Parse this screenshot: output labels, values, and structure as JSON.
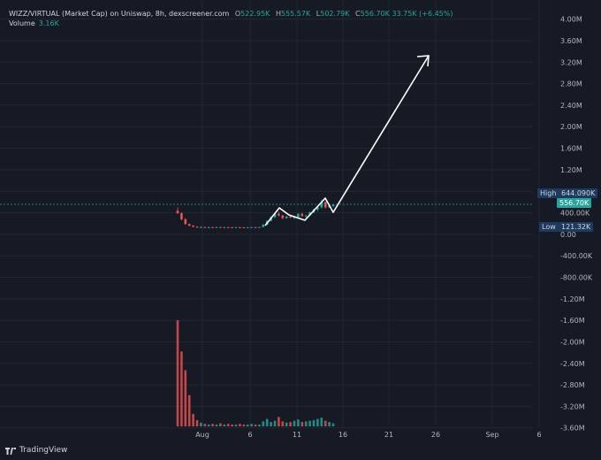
{
  "header": {
    "pair": "WIZZ/VIRTUAL (Market Cap) on Uniswap, 8h, dexscreener.com",
    "open_label": "O",
    "open_value": "522.95K",
    "high_label": "H",
    "high_value": "555.57K",
    "low_label": "L",
    "low_value": "502.79K",
    "close_label": "C",
    "close_value": "556.70K",
    "change": "33.75K (+6.45%)",
    "volume_label": "Volume",
    "volume_value": "3.16K"
  },
  "price_tags": {
    "high_label": "High",
    "high_value": "644.090K",
    "current_value": "556.70K",
    "low_label": "Low",
    "low_value": "121.32K"
  },
  "footer": {
    "brand": "TradingView"
  },
  "colors": {
    "background": "#161a25",
    "grid": "#232733",
    "up": "#26a69a",
    "down": "#ef5350",
    "text": "#b2b5be",
    "tag_bg": "#1e3a5f",
    "current_tag_bg": "#26a69a",
    "arrow": "#ffffff"
  },
  "chart_data": {
    "type": "candlestick",
    "y_axis_ticks": [
      "4.00M",
      "3.60M",
      "3.20M",
      "2.80M",
      "2.40M",
      "2.00M",
      "1.60M",
      "1.20M",
      "800.00K",
      "400.00K",
      "0.00",
      "-400.00K",
      "-800.00K",
      "-1.20M",
      "-1.60M",
      "-2.00M",
      "-2.40M",
      "-2.80M",
      "-3.20M",
      "-3.60M"
    ],
    "y_tick_values": [
      4000000,
      3600000,
      3200000,
      2800000,
      2400000,
      2000000,
      1600000,
      1200000,
      800000,
      400000,
      0,
      -400000,
      -800000,
      -1200000,
      -1600000,
      -2000000,
      -2400000,
      -2800000,
      -3200000,
      -3600000
    ],
    "x_axis_ticks": [
      "Aug",
      "6",
      "11",
      "16",
      "21",
      "26",
      "Sep",
      "6"
    ],
    "candles": [
      {
        "o": 440000,
        "h": 500000,
        "l": 380000,
        "c": 390000
      },
      {
        "o": 390000,
        "h": 410000,
        "l": 260000,
        "c": 280000
      },
      {
        "o": 280000,
        "h": 300000,
        "l": 180000,
        "c": 190000
      },
      {
        "o": 190000,
        "h": 200000,
        "l": 150000,
        "c": 160000
      },
      {
        "o": 160000,
        "h": 170000,
        "l": 130000,
        "c": 140000
      },
      {
        "o": 140000,
        "h": 150000,
        "l": 125000,
        "c": 130000
      },
      {
        "o": 130000,
        "h": 145000,
        "l": 122000,
        "c": 135000
      },
      {
        "o": 135000,
        "h": 140000,
        "l": 124000,
        "c": 128000
      },
      {
        "o": 128000,
        "h": 138000,
        "l": 121320,
        "c": 132000
      },
      {
        "o": 132000,
        "h": 140000,
        "l": 125000,
        "c": 130000
      },
      {
        "o": 130000,
        "h": 138000,
        "l": 124000,
        "c": 134000
      },
      {
        "o": 134000,
        "h": 140000,
        "l": 126000,
        "c": 129000
      },
      {
        "o": 129000,
        "h": 136000,
        "l": 124000,
        "c": 133000
      },
      {
        "o": 133000,
        "h": 139000,
        "l": 127000,
        "c": 131000
      },
      {
        "o": 131000,
        "h": 137000,
        "l": 125000,
        "c": 130000
      },
      {
        "o": 130000,
        "h": 135000,
        "l": 124000,
        "c": 132000
      },
      {
        "o": 132000,
        "h": 138000,
        "l": 126000,
        "c": 129000
      },
      {
        "o": 129000,
        "h": 134000,
        "l": 123000,
        "c": 127000
      },
      {
        "o": 127000,
        "h": 133000,
        "l": 122000,
        "c": 130000
      },
      {
        "o": 130000,
        "h": 137000,
        "l": 125000,
        "c": 133000
      },
      {
        "o": 133000,
        "h": 140000,
        "l": 128000,
        "c": 131000
      },
      {
        "o": 131000,
        "h": 136000,
        "l": 126000,
        "c": 134000
      },
      {
        "o": 134000,
        "h": 190000,
        "l": 130000,
        "c": 180000
      },
      {
        "o": 180000,
        "h": 260000,
        "l": 170000,
        "c": 250000
      },
      {
        "o": 250000,
        "h": 330000,
        "l": 240000,
        "c": 320000
      },
      {
        "o": 320000,
        "h": 400000,
        "l": 300000,
        "c": 380000
      },
      {
        "o": 380000,
        "h": 420000,
        "l": 330000,
        "c": 350000
      },
      {
        "o": 350000,
        "h": 360000,
        "l": 280000,
        "c": 300000
      },
      {
        "o": 300000,
        "h": 340000,
        "l": 290000,
        "c": 330000
      },
      {
        "o": 330000,
        "h": 350000,
        "l": 300000,
        "c": 310000
      },
      {
        "o": 310000,
        "h": 330000,
        "l": 280000,
        "c": 320000
      },
      {
        "o": 320000,
        "h": 390000,
        "l": 310000,
        "c": 380000
      },
      {
        "o": 380000,
        "h": 400000,
        "l": 320000,
        "c": 340000
      },
      {
        "o": 340000,
        "h": 360000,
        "l": 300000,
        "c": 350000
      },
      {
        "o": 350000,
        "h": 420000,
        "l": 340000,
        "c": 410000
      },
      {
        "o": 410000,
        "h": 480000,
        "l": 390000,
        "c": 460000
      },
      {
        "o": 460000,
        "h": 520000,
        "l": 430000,
        "c": 500000
      },
      {
        "o": 500000,
        "h": 644090,
        "l": 480000,
        "c": 600000
      },
      {
        "o": 600000,
        "h": 610000,
        "l": 480000,
        "c": 500000
      },
      {
        "o": 500000,
        "h": 560000,
        "l": 490000,
        "c": 540000
      },
      {
        "o": 522950,
        "h": 555570,
        "l": 502790,
        "c": 556700
      }
    ],
    "volume": [
      17,
      12,
      9,
      5,
      2,
      1,
      0.6,
      0.4,
      0.3,
      0.4,
      0.3,
      0.5,
      0.3,
      0.4,
      0.3,
      0.3,
      0.4,
      0.3,
      0.3,
      0.4,
      0.3,
      0.3,
      0.8,
      1.2,
      0.7,
      0.9,
      1.5,
      0.8,
      0.6,
      0.7,
      0.9,
      1.1,
      0.7,
      0.8,
      0.9,
      1.0,
      1.2,
      1.4,
      0.9,
      0.7,
      0.5
    ]
  }
}
